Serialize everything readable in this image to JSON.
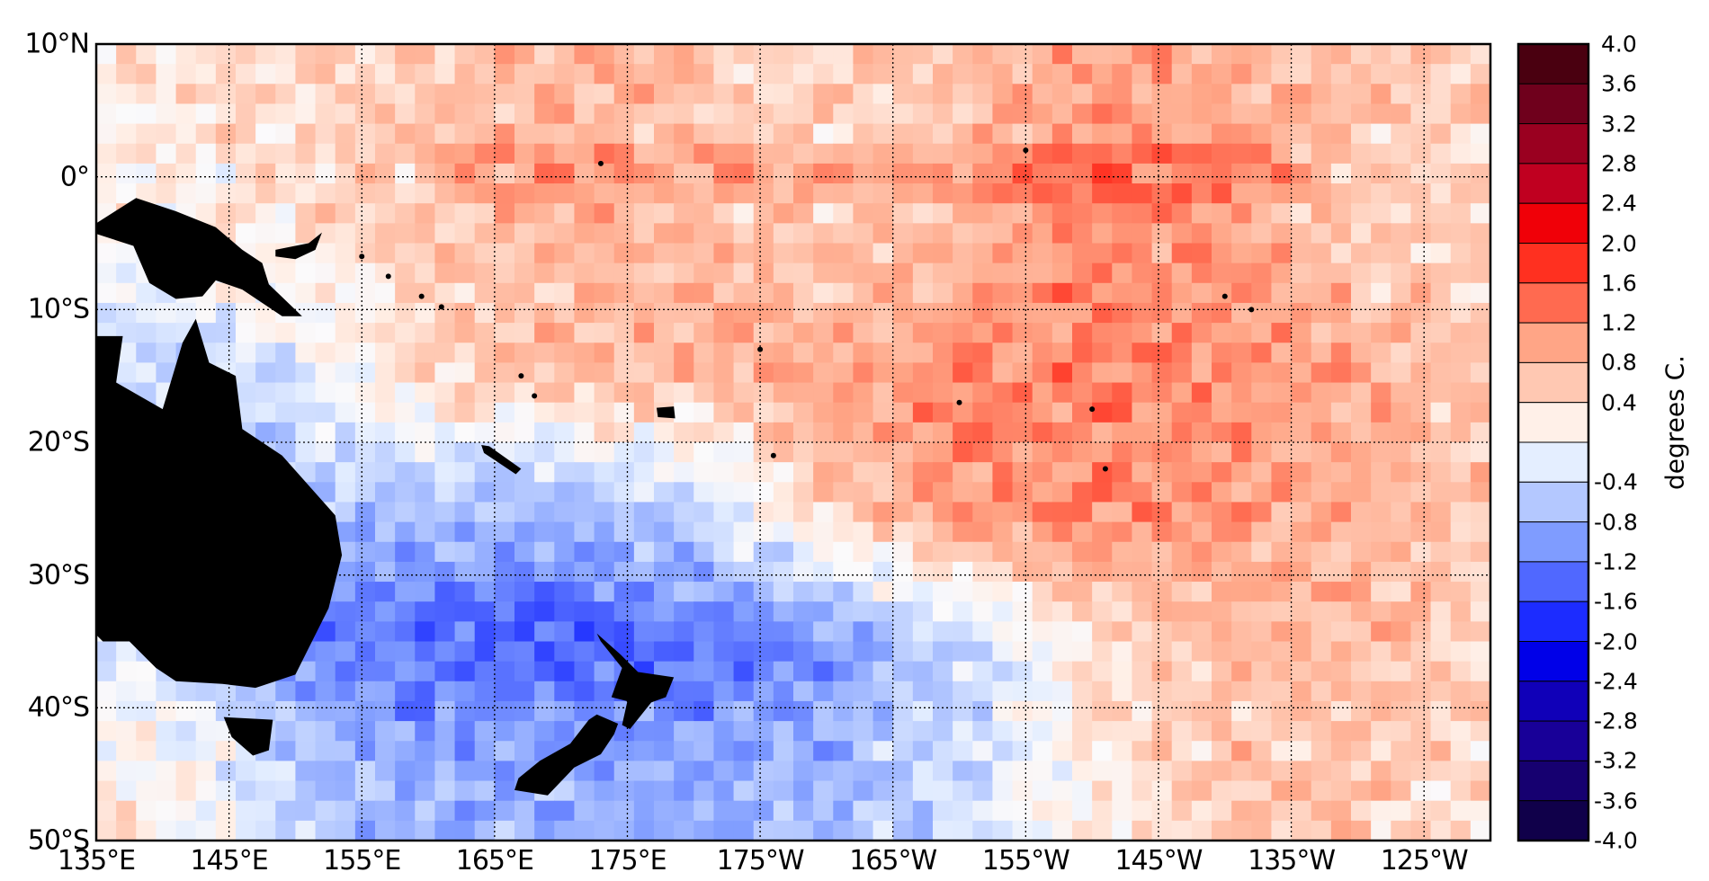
{
  "chart_data": {
    "type": "heatmap",
    "title": "",
    "description_units": "degrees C.",
    "colorbar": {
      "label": "degrees C.",
      "range": [
        -4.0,
        4.0
      ],
      "levels": [
        4.0,
        3.6,
        3.2,
        2.8,
        2.4,
        2.0,
        1.6,
        1.2,
        0.8,
        0.4,
        0.0,
        -0.4,
        -0.8,
        -1.2,
        -1.6,
        -2.0,
        -2.4,
        -2.8,
        -3.2,
        -3.6,
        -4.0
      ],
      "tick_labels": [
        "4.0",
        "3.6",
        "3.2",
        "2.8",
        "2.4",
        "2.0",
        "1.6",
        "1.2",
        "0.8",
        "0.4",
        "",
        "-0.4",
        "-0.8",
        "-1.2",
        "-1.6",
        "-2.0",
        "-2.4",
        "-2.8",
        "-3.2",
        "-3.6",
        "-4.0"
      ],
      "colors": [
        "#4a0010",
        "#6f001c",
        "#9a0020",
        "#c00020",
        "#f00008",
        "#ff3020",
        "#ff6a50",
        "#ffa586",
        "#ffc8b2",
        "#fff0e8",
        "#e4eeff",
        "#b4c8ff",
        "#7f9cff",
        "#5068ff",
        "#1c2cff",
        "#0000e8",
        "#1000b8",
        "#180098",
        "#160070",
        "#10004a"
      ]
    },
    "x_ticks": [
      {
        "lon": 135,
        "label": "135°E"
      },
      {
        "lon": 145,
        "label": "145°E"
      },
      {
        "lon": 155,
        "label": "155°E"
      },
      {
        "lon": 165,
        "label": "165°E"
      },
      {
        "lon": 175,
        "label": "175°E"
      },
      {
        "lon": 185,
        "label": "175°W"
      },
      {
        "lon": 195,
        "label": "165°W"
      },
      {
        "lon": 205,
        "label": "155°W"
      },
      {
        "lon": 215,
        "label": "145°W"
      },
      {
        "lon": 225,
        "label": "135°W"
      },
      {
        "lon": 235,
        "label": "125°W"
      }
    ],
    "y_ticks": [
      {
        "lat": 10,
        "label": "10°N"
      },
      {
        "lat": 0,
        "label": "0°"
      },
      {
        "lat": -10,
        "label": "10°S"
      },
      {
        "lat": -20,
        "label": "20°S"
      },
      {
        "lat": -30,
        "label": "30°S"
      },
      {
        "lat": -40,
        "label": "40°S"
      },
      {
        "lat": -50,
        "label": "50°S"
      }
    ],
    "xlim": [
      135,
      240
    ],
    "ylim": [
      -50,
      10
    ],
    "grid": true,
    "approx_anomaly_grid": {
      "lat_centers": [
        5,
        -5,
        -15,
        -25,
        -35,
        -45
      ],
      "lon_centers": [
        140,
        150,
        160,
        170,
        180,
        190,
        200,
        210,
        220,
        230,
        238
      ],
      "values": [
        [
          0.3,
          0.4,
          0.6,
          0.8,
          0.6,
          0.5,
          0.7,
          1.0,
          0.9,
          0.6,
          0.5
        ],
        [
          0.1,
          0.3,
          0.6,
          0.8,
          0.7,
          0.6,
          0.8,
          1.2,
          1.0,
          0.6,
          0.5
        ],
        [
          -0.5,
          -0.3,
          0.4,
          0.7,
          0.8,
          1.0,
          1.2,
          1.2,
          1.1,
          0.9,
          0.6
        ],
        [
          -0.5,
          -0.6,
          -0.6,
          -0.8,
          -0.5,
          0.6,
          1.0,
          1.2,
          1.0,
          0.8,
          0.6
        ],
        [
          -0.3,
          -1.2,
          -1.4,
          -1.5,
          -1.3,
          -1.0,
          -0.5,
          0.3,
          0.7,
          0.8,
          0.5
        ],
        [
          0.2,
          -0.5,
          -0.8,
          -0.8,
          -0.9,
          -0.7,
          -0.4,
          0.2,
          0.6,
          0.6,
          0.4
        ]
      ]
    }
  }
}
